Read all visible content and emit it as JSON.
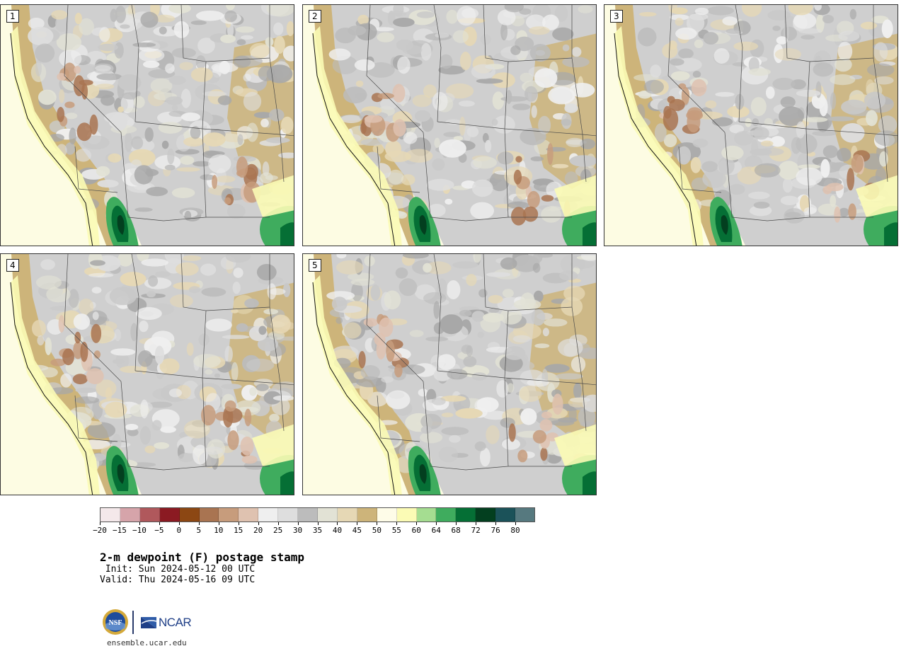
{
  "panels": [
    {
      "label": "1",
      "variant": 0
    },
    {
      "label": "2",
      "variant": 1
    },
    {
      "label": "3",
      "variant": 2
    },
    {
      "label": "4",
      "variant": 3
    },
    {
      "label": "5",
      "variant": 4
    }
  ],
  "colorbar": {
    "colors": [
      "#f4e8ea",
      "#d6a4aa",
      "#b0585c",
      "#8b1a22",
      "#8c4713",
      "#a97451",
      "#c79c7c",
      "#dfc2b0",
      "#efefef",
      "#dedede",
      "#bcbcbc",
      "#e2e2d5",
      "#e6d8b5",
      "#cdb47a",
      "#fefce8",
      "#fbfbb5",
      "#a5dd91",
      "#3fac5e",
      "#056f35",
      "#033f1f",
      "#1b5259",
      "#56797f"
    ],
    "tick_labels": [
      "−20",
      "−15",
      "−10",
      "−5",
      "0",
      "5",
      "10",
      "15",
      "20",
      "25",
      "30",
      "35",
      "40",
      "45",
      "50",
      "55",
      "60",
      "64",
      "68",
      "72",
      "76",
      "80"
    ]
  },
  "title": "2-m dewpoint (F) postage stamp",
  "init_label": " Init: Sun 2024-05-12 00 UTC",
  "valid_label": "Valid: Thu 2024-05-16 09 UTC",
  "logos": {
    "nsf": "NSF",
    "ncar": "NCAR"
  },
  "website": "ensemble.ucar.edu"
}
